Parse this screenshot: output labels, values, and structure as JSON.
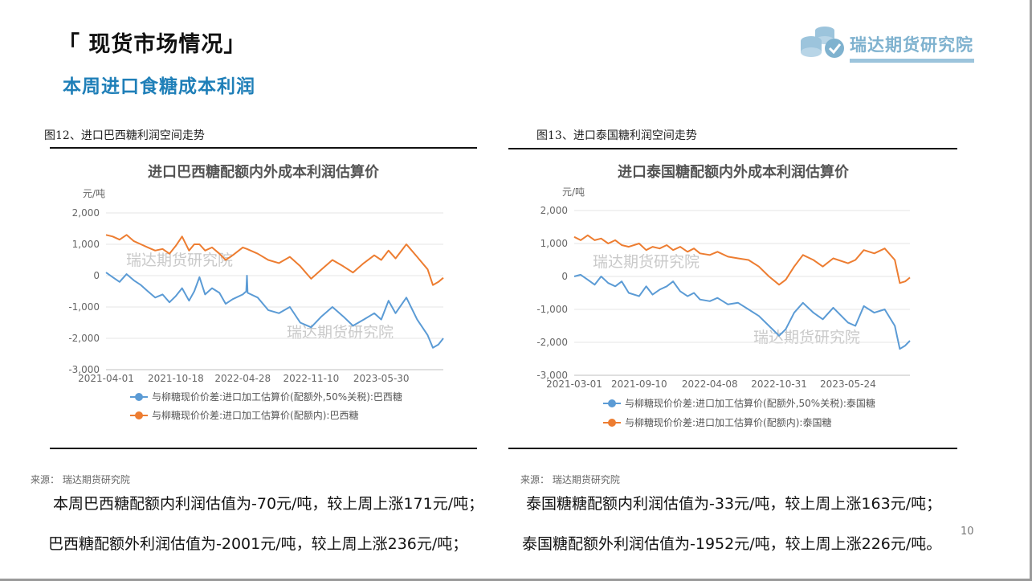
{
  "header": {
    "title": "「 现货市场情况」",
    "subtitle": "本周进口食糖成本利润",
    "logo_text": "瑞达期货研究院"
  },
  "figures": [
    {
      "caption": "图12、进口巴西糖利润空间走势",
      "source": "来源：  瑞达期货研究院",
      "watermark": "瑞达期货研究院"
    },
    {
      "caption": "图13、进口泰国糖利润空间走势",
      "source": "来源：   瑞达期货研究院",
      "watermark": "瑞达期货研究院"
    }
  ],
  "text": {
    "brazil_in_quota": "本周巴西糖配额内利润估值为-70元/吨，较上周上涨171元/吨；",
    "brazil_out_quota": "巴西糖配额外利润估值为-2001元/吨，较上周上涨236元/吨；",
    "thai_in_quota": "泰国糖糖配额内利润估值为-33元/吨，较上周上涨163元/吨；",
    "thai_out_quota": "泰国糖配额外利润估值为-1952元/吨，较上周上涨226元/吨。"
  },
  "page_number": "10",
  "colors": {
    "out_quota_series": "#5b9bd5",
    "in_quota_series": "#ed7d31",
    "subtitle": "#1f7fb8",
    "logo": "#7fb2cf"
  },
  "chart_data": [
    {
      "type": "line",
      "title": "进口巴西糖配额内外成本利润估算价",
      "ylabel": "元/吨",
      "ylim": [
        -3000,
        2000
      ],
      "yticks": [
        2000,
        1000,
        0,
        -1000,
        -2000,
        -3000
      ],
      "ytick_labels": [
        "2,000",
        "1,000",
        "0",
        "-1,000",
        "-2,000",
        "-3,000"
      ],
      "xlim": [
        "2021-04-01",
        "2023-11-24"
      ],
      "xticks": [
        "2021-04-01",
        "2021-10-18",
        "2022-04-28",
        "2022-11-10",
        "2023-05-30"
      ],
      "grid": true,
      "legend_position": "bottom",
      "series": [
        {
          "name": "与柳糖现价价差:进口加工估算价(配额外,50%关税):巴西糖",
          "color": "#5b9bd5",
          "points": [
            [
              "2021-04-01",
              100
            ],
            [
              "2021-04-20",
              -50
            ],
            [
              "2021-05-10",
              -200
            ],
            [
              "2021-05-30",
              50
            ],
            [
              "2021-06-20",
              -150
            ],
            [
              "2021-07-10",
              -300
            ],
            [
              "2021-07-30",
              -500
            ],
            [
              "2021-08-20",
              -700
            ],
            [
              "2021-09-10",
              -600
            ],
            [
              "2021-09-30",
              -850
            ],
            [
              "2021-10-18",
              -650
            ],
            [
              "2021-11-05",
              -400
            ],
            [
              "2021-11-25",
              -800
            ],
            [
              "2021-12-10",
              -500
            ],
            [
              "2021-12-25",
              -50
            ],
            [
              "2022-01-10",
              -600
            ],
            [
              "2022-01-30",
              -400
            ],
            [
              "2022-02-20",
              -550
            ],
            [
              "2022-03-10",
              -900
            ],
            [
              "2022-03-30",
              -750
            ],
            [
              "2022-04-28",
              -600
            ],
            [
              "2022-05-08",
              -500
            ],
            [
              "2022-05-10",
              0
            ],
            [
              "2022-05-12",
              -550
            ],
            [
              "2022-06-10",
              -700
            ],
            [
              "2022-07-10",
              -1100
            ],
            [
              "2022-08-10",
              -1200
            ],
            [
              "2022-09-10",
              -1000
            ],
            [
              "2022-10-10",
              -1500
            ],
            [
              "2022-11-10",
              -1650
            ],
            [
              "2022-12-10",
              -1300
            ],
            [
              "2023-01-10",
              -1000
            ],
            [
              "2023-02-10",
              -1300
            ],
            [
              "2023-03-10",
              -1600
            ],
            [
              "2023-04-10",
              -1400
            ],
            [
              "2023-05-10",
              -1200
            ],
            [
              "2023-05-30",
              -1400
            ],
            [
              "2023-06-20",
              -800
            ],
            [
              "2023-07-10",
              -1200
            ],
            [
              "2023-08-10",
              -700
            ],
            [
              "2023-09-10",
              -1400
            ],
            [
              "2023-10-10",
              -1900
            ],
            [
              "2023-10-25",
              -2300
            ],
            [
              "2023-11-10",
              -2200
            ],
            [
              "2023-11-24",
              -2001
            ]
          ]
        },
        {
          "name": "与柳糖现价价差:进口加工估算价(配额内):巴西糖",
          "color": "#ed7d31",
          "points": [
            [
              "2021-04-01",
              1300
            ],
            [
              "2021-04-20",
              1250
            ],
            [
              "2021-05-10",
              1150
            ],
            [
              "2021-05-30",
              1300
            ],
            [
              "2021-06-20",
              1100
            ],
            [
              "2021-07-10",
              1000
            ],
            [
              "2021-07-30",
              900
            ],
            [
              "2021-08-20",
              800
            ],
            [
              "2021-09-10",
              850
            ],
            [
              "2021-09-30",
              700
            ],
            [
              "2021-10-18",
              950
            ],
            [
              "2021-11-05",
              1250
            ],
            [
              "2021-11-25",
              800
            ],
            [
              "2021-12-10",
              1000
            ],
            [
              "2021-12-25",
              1000
            ],
            [
              "2022-01-10",
              800
            ],
            [
              "2022-01-30",
              900
            ],
            [
              "2022-02-20",
              700
            ],
            [
              "2022-03-10",
              500
            ],
            [
              "2022-03-30",
              650
            ],
            [
              "2022-04-28",
              900
            ],
            [
              "2022-05-10",
              850
            ],
            [
              "2022-06-10",
              700
            ],
            [
              "2022-07-10",
              500
            ],
            [
              "2022-08-10",
              400
            ],
            [
              "2022-09-10",
              600
            ],
            [
              "2022-10-10",
              300
            ],
            [
              "2022-11-10",
              -100
            ],
            [
              "2022-12-10",
              200
            ],
            [
              "2023-01-10",
              500
            ],
            [
              "2023-02-10",
              300
            ],
            [
              "2023-03-10",
              100
            ],
            [
              "2023-04-10",
              400
            ],
            [
              "2023-05-10",
              650
            ],
            [
              "2023-05-30",
              500
            ],
            [
              "2023-06-20",
              800
            ],
            [
              "2023-07-10",
              550
            ],
            [
              "2023-08-10",
              1000
            ],
            [
              "2023-09-10",
              600
            ],
            [
              "2023-10-10",
              200
            ],
            [
              "2023-10-25",
              -300
            ],
            [
              "2023-11-10",
              -200
            ],
            [
              "2023-11-24",
              -70
            ]
          ]
        }
      ]
    },
    {
      "type": "line",
      "title": "进口泰国糖配额内外成本利润估算价",
      "ylabel": "元/吨",
      "ylim": [
        -3000,
        2000
      ],
      "yticks": [
        2000,
        1000,
        0,
        -1000,
        -2000,
        -3000
      ],
      "ytick_labels": [
        "2,000",
        "1,000",
        "0",
        "-1,000",
        "-2,000",
        "-3,000"
      ],
      "xlim": [
        "2021-03-01",
        "2023-11-24"
      ],
      "xticks": [
        "2021-03-01",
        "2021-09-10",
        "2022-04-08",
        "2022-10-31",
        "2023-05-24"
      ],
      "grid": true,
      "legend_position": "bottom",
      "series": [
        {
          "name": "与柳糖现价价差:进口加工估算价(配额外,50%关税):泰国糖",
          "color": "#5b9bd5",
          "points": [
            [
              "2021-03-01",
              0
            ],
            [
              "2021-03-20",
              50
            ],
            [
              "2021-04-10",
              -100
            ],
            [
              "2021-05-01",
              -250
            ],
            [
              "2021-05-20",
              0
            ],
            [
              "2021-06-10",
              -200
            ],
            [
              "2021-07-01",
              -300
            ],
            [
              "2021-07-20",
              -150
            ],
            [
              "2021-08-10",
              -500
            ],
            [
              "2021-09-10",
              -600
            ],
            [
              "2021-10-01",
              -300
            ],
            [
              "2021-10-20",
              -550
            ],
            [
              "2021-11-10",
              -400
            ],
            [
              "2021-12-01",
              -300
            ],
            [
              "2021-12-20",
              -150
            ],
            [
              "2022-01-10",
              -450
            ],
            [
              "2022-02-01",
              -600
            ],
            [
              "2022-02-20",
              -500
            ],
            [
              "2022-03-10",
              -700
            ],
            [
              "2022-04-08",
              -750
            ],
            [
              "2022-05-01",
              -650
            ],
            [
              "2022-06-01",
              -850
            ],
            [
              "2022-07-01",
              -800
            ],
            [
              "2022-08-01",
              -1000
            ],
            [
              "2022-09-01",
              -1200
            ],
            [
              "2022-10-01",
              -1500
            ],
            [
              "2022-10-31",
              -1800
            ],
            [
              "2022-11-20",
              -1600
            ],
            [
              "2022-12-15",
              -1100
            ],
            [
              "2023-01-10",
              -800
            ],
            [
              "2023-02-10",
              -1100
            ],
            [
              "2023-03-10",
              -1300
            ],
            [
              "2023-04-10",
              -950
            ],
            [
              "2023-05-24",
              -1400
            ],
            [
              "2023-06-15",
              -1500
            ],
            [
              "2023-07-10",
              -900
            ],
            [
              "2023-08-10",
              -1100
            ],
            [
              "2023-09-10",
              -1000
            ],
            [
              "2023-10-10",
              -1500
            ],
            [
              "2023-10-25",
              -2200
            ],
            [
              "2023-11-10",
              -2100
            ],
            [
              "2023-11-24",
              -1952
            ]
          ]
        },
        {
          "name": "与柳糖现价价差:进口加工估算价(配额内):泰国糖",
          "color": "#ed7d31",
          "points": [
            [
              "2021-03-01",
              1200
            ],
            [
              "2021-03-20",
              1100
            ],
            [
              "2021-04-10",
              1250
            ],
            [
              "2021-05-01",
              1100
            ],
            [
              "2021-05-20",
              1150
            ],
            [
              "2021-06-10",
              1000
            ],
            [
              "2021-07-01",
              1100
            ],
            [
              "2021-07-20",
              950
            ],
            [
              "2021-08-10",
              900
            ],
            [
              "2021-09-10",
              1000
            ],
            [
              "2021-10-01",
              800
            ],
            [
              "2021-10-20",
              900
            ],
            [
              "2021-11-10",
              850
            ],
            [
              "2021-12-01",
              950
            ],
            [
              "2021-12-20",
              800
            ],
            [
              "2022-01-10",
              900
            ],
            [
              "2022-02-01",
              750
            ],
            [
              "2022-02-20",
              850
            ],
            [
              "2022-03-10",
              700
            ],
            [
              "2022-04-08",
              650
            ],
            [
              "2022-05-01",
              750
            ],
            [
              "2022-06-01",
              600
            ],
            [
              "2022-07-01",
              550
            ],
            [
              "2022-08-01",
              500
            ],
            [
              "2022-09-01",
              300
            ],
            [
              "2022-10-01",
              0
            ],
            [
              "2022-10-31",
              -250
            ],
            [
              "2022-11-20",
              -100
            ],
            [
              "2022-12-15",
              300
            ],
            [
              "2023-01-10",
              650
            ],
            [
              "2023-02-10",
              500
            ],
            [
              "2023-03-10",
              300
            ],
            [
              "2023-04-10",
              550
            ],
            [
              "2023-05-24",
              400
            ],
            [
              "2023-06-15",
              500
            ],
            [
              "2023-07-10",
              800
            ],
            [
              "2023-08-10",
              700
            ],
            [
              "2023-09-10",
              850
            ],
            [
              "2023-10-10",
              500
            ],
            [
              "2023-10-25",
              -200
            ],
            [
              "2023-11-10",
              -150
            ],
            [
              "2023-11-24",
              -33
            ]
          ]
        }
      ]
    }
  ]
}
